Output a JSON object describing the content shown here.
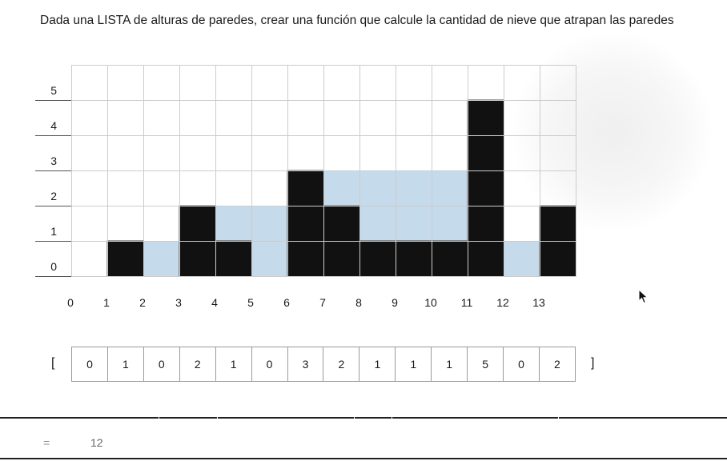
{
  "title": "Dada una LISTA de alturas de paredes, crear una función que calcule la cantidad de nieve que atrapan las paredes",
  "chart_data": {
    "type": "grid",
    "walls": [
      0,
      1,
      0,
      2,
      1,
      0,
      3,
      2,
      1,
      1,
      1,
      5,
      0,
      2
    ],
    "snow": [
      0,
      0,
      1,
      0,
      1,
      2,
      0,
      1,
      2,
      2,
      2,
      0,
      1,
      0
    ],
    "x_labels": [
      "0",
      "1",
      "2",
      "3",
      "4",
      "5",
      "6",
      "7",
      "8",
      "9",
      "10",
      "11",
      "12",
      "13"
    ],
    "y_labels": [
      "0",
      "1",
      "2",
      "3",
      "4",
      "5"
    ],
    "wall_color": "#111111",
    "snow_color": "#c5daeb",
    "grid_color": "#cccccc"
  },
  "array": {
    "open": "[",
    "values": [
      "0",
      "1",
      "0",
      "2",
      "1",
      "0",
      "3",
      "2",
      "1",
      "1",
      "1",
      "5",
      "0",
      "2"
    ],
    "close": "]"
  },
  "result": {
    "eq": "=",
    "value": "12"
  }
}
